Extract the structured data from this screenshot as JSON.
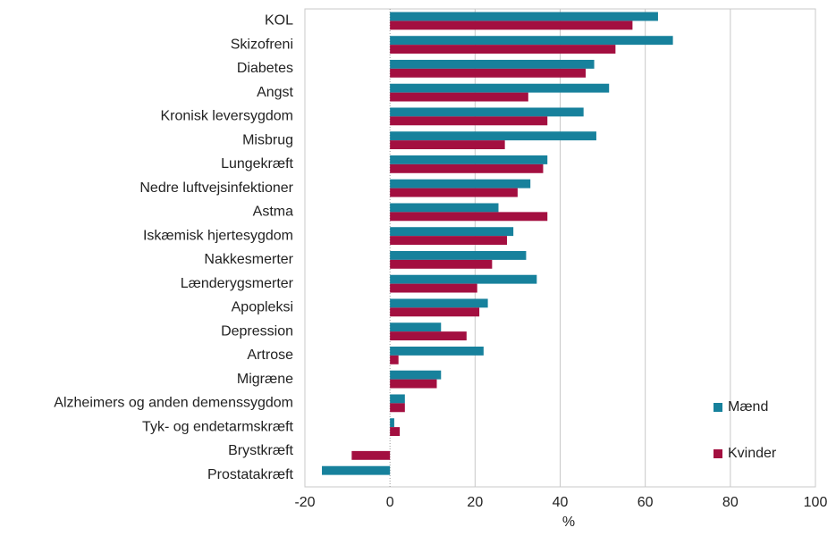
{
  "chart_data": {
    "type": "bar",
    "orientation": "horizontal",
    "categories": [
      "KOL",
      "Skizofreni",
      "Diabetes",
      "Angst ",
      "Kronisk leversygdom",
      "Misbrug",
      "Lungekræft",
      "Nedre luftvejsinfektioner",
      "Astma",
      "Iskæmisk hjertesygdom",
      "Nakkesmerter",
      "Lænderygsmerter",
      "Apopleksi",
      "Depression",
      "Artrose",
      "Migræne",
      "Alzheimers og anden demenssygdom",
      "Tyk- og endetarmskræft",
      "Brystkræft",
      "Prostatakræft"
    ],
    "series": [
      {
        "name": "Mænd",
        "color": "#17819c",
        "values": [
          63,
          66.5,
          48,
          51.5,
          45.5,
          48.5,
          37,
          33,
          25.5,
          29,
          32,
          34.5,
          23,
          12,
          22,
          12,
          3.5,
          1,
          null,
          -16
        ]
      },
      {
        "name": "Kvinder",
        "color": "#a30f40",
        "values": [
          57,
          53,
          46,
          32.5,
          37,
          27,
          36,
          30,
          37,
          27.5,
          24,
          20.5,
          21,
          18,
          2,
          11,
          3.5,
          2.3,
          -9,
          null
        ]
      }
    ],
    "xlabel": "%",
    "xlim": [
      -20,
      100
    ],
    "xticks": [
      -20,
      0,
      20,
      40,
      60,
      80,
      100
    ],
    "grid": true,
    "legend": "right"
  }
}
